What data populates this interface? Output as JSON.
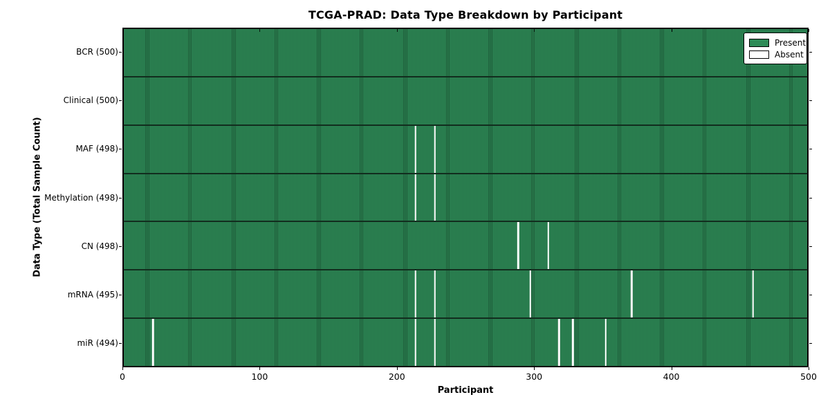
{
  "figure": {
    "title": "TCGA-PRAD: Data Type Breakdown by Participant",
    "xlabel": "Participant",
    "ylabel": "Data Type (Total Sample Count)"
  },
  "legend": {
    "items": [
      {
        "label": "Present",
        "color": "#2e8b57"
      },
      {
        "label": "Absent",
        "color": "#ffffff"
      }
    ]
  },
  "chart_data": {
    "type": "heatmap",
    "title": "TCGA-PRAD: Data Type Breakdown by Participant",
    "xlabel": "Participant",
    "ylabel": "Data Type (Total Sample Count)",
    "x_range": [
      0,
      500
    ],
    "x_ticks": [
      0,
      100,
      200,
      300,
      400,
      500
    ],
    "x_tick_labels": [
      "0",
      "100",
      "200",
      "300",
      "400",
      "500"
    ],
    "legend_entries": [
      "Present",
      "Absent"
    ],
    "legend_position": "upper right",
    "grid": false,
    "colors": {
      "present": "#2e8b57",
      "absent": "#ffffff",
      "bar_edge": "#1b5233",
      "row_separator": "#122d1e",
      "axis": "#000000",
      "background": "#ffffff"
    },
    "rows": [
      {
        "name": "BCR",
        "label": "BCR (500)",
        "total_samples": 500,
        "absent_participants": []
      },
      {
        "name": "Clinical",
        "label": "Clinical (500)",
        "total_samples": 500,
        "absent_participants": []
      },
      {
        "name": "MAF",
        "label": "MAF (498)",
        "total_samples": 498,
        "absent_participants": [
          213,
          227
        ]
      },
      {
        "name": "Methylation",
        "label": "Methylation (498)",
        "total_samples": 498,
        "absent_participants": [
          213,
          227
        ]
      },
      {
        "name": "CN",
        "label": "CN (498)",
        "total_samples": 498,
        "absent_participants": [
          288,
          310
        ]
      },
      {
        "name": "mRNA",
        "label": "mRNA (495)",
        "total_samples": 495,
        "absent_participants": [
          213,
          227,
          297,
          371,
          460
        ]
      },
      {
        "name": "miR",
        "label": "miR (494)",
        "total_samples": 494,
        "absent_participants": [
          21,
          213,
          227,
          318,
          328,
          352
        ]
      }
    ]
  }
}
